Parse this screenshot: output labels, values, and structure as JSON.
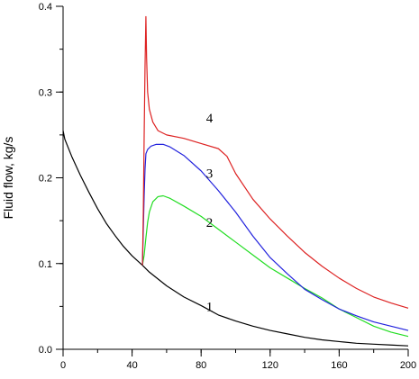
{
  "chart_data": {
    "type": "line",
    "title": "",
    "xlabel": "",
    "ylabel": "Fluid flow, kg/s",
    "xlim": [
      0,
      200
    ],
    "ylim": [
      0,
      0.4
    ],
    "x_ticks": [
      0,
      40,
      80,
      120,
      160,
      200
    ],
    "x_minor_step": 20,
    "y_ticks": [
      0.0,
      0.1,
      0.2,
      0.3,
      0.4
    ],
    "y_tick_labels": [
      "0.0",
      "0.1",
      "0.2",
      "0.3",
      "0.4"
    ],
    "y_minor_step": 0.05,
    "grid": false,
    "legend": "none",
    "series": [
      {
        "label": "1",
        "color": "#000000",
        "label_at": [
          50,
          0.05
        ],
        "points": [
          [
            0,
            0.255
          ],
          [
            1,
            0.245
          ],
          [
            5,
            0.225
          ],
          [
            10,
            0.203
          ],
          [
            15,
            0.183
          ],
          [
            20,
            0.164
          ],
          [
            25,
            0.147
          ],
          [
            30,
            0.133
          ],
          [
            35,
            0.12
          ],
          [
            40,
            0.109
          ],
          [
            46,
            0.098
          ],
          [
            50,
            0.09
          ],
          [
            60,
            0.074
          ],
          [
            70,
            0.061
          ],
          [
            80,
            0.051
          ],
          [
            90,
            0.04
          ],
          [
            100,
            0.033
          ],
          [
            110,
            0.027
          ],
          [
            120,
            0.022
          ],
          [
            130,
            0.018
          ],
          [
            140,
            0.014
          ],
          [
            150,
            0.011
          ],
          [
            160,
            0.009
          ],
          [
            170,
            0.007
          ],
          [
            180,
            0.006
          ],
          [
            190,
            0.005
          ],
          [
            200,
            0.004
          ]
        ]
      },
      {
        "label": "2",
        "color": "#22dd22",
        "label_at": [
          50,
          0.148
        ],
        "points": [
          [
            46,
            0.098
          ],
          [
            47,
            0.11
          ],
          [
            48,
            0.13
          ],
          [
            49,
            0.148
          ],
          [
            50,
            0.16
          ],
          [
            52,
            0.172
          ],
          [
            55,
            0.178
          ],
          [
            58,
            0.179
          ],
          [
            62,
            0.176
          ],
          [
            70,
            0.167
          ],
          [
            80,
            0.155
          ],
          [
            90,
            0.14
          ],
          [
            100,
            0.125
          ],
          [
            110,
            0.11
          ],
          [
            120,
            0.095
          ],
          [
            130,
            0.083
          ],
          [
            140,
            0.071
          ],
          [
            150,
            0.06
          ],
          [
            160,
            0.047
          ],
          [
            170,
            0.037
          ],
          [
            180,
            0.027
          ],
          [
            190,
            0.02
          ],
          [
            200,
            0.015
          ]
        ]
      },
      {
        "label": "3",
        "color": "#2222dd",
        "label_at": [
          50,
          0.205
        ],
        "points": [
          [
            46,
            0.098
          ],
          [
            46.5,
            0.14
          ],
          [
            47,
            0.18
          ],
          [
            47.5,
            0.21
          ],
          [
            48,
            0.228
          ],
          [
            49,
            0.233
          ],
          [
            51,
            0.237
          ],
          [
            54,
            0.239
          ],
          [
            58,
            0.239
          ],
          [
            62,
            0.236
          ],
          [
            70,
            0.226
          ],
          [
            80,
            0.208
          ],
          [
            90,
            0.185
          ],
          [
            100,
            0.16
          ],
          [
            110,
            0.132
          ],
          [
            120,
            0.107
          ],
          [
            130,
            0.088
          ],
          [
            140,
            0.07
          ],
          [
            150,
            0.058
          ],
          [
            160,
            0.047
          ],
          [
            170,
            0.039
          ],
          [
            180,
            0.032
          ],
          [
            190,
            0.027
          ],
          [
            200,
            0.022
          ]
        ]
      },
      {
        "label": "4",
        "color": "#dd2222",
        "label_at": [
          50,
          0.27
        ],
        "points": [
          [
            46,
            0.098
          ],
          [
            46.5,
            0.16
          ],
          [
            47,
            0.25
          ],
          [
            47.5,
            0.33
          ],
          [
            48,
            0.388
          ],
          [
            48.4,
            0.34
          ],
          [
            49,
            0.3
          ],
          [
            50,
            0.28
          ],
          [
            52,
            0.265
          ],
          [
            55,
            0.255
          ],
          [
            60,
            0.25
          ],
          [
            70,
            0.246
          ],
          [
            80,
            0.24
          ],
          [
            90,
            0.234
          ],
          [
            95,
            0.225
          ],
          [
            100,
            0.205
          ],
          [
            110,
            0.175
          ],
          [
            120,
            0.152
          ],
          [
            130,
            0.132
          ],
          [
            140,
            0.113
          ],
          [
            150,
            0.097
          ],
          [
            160,
            0.083
          ],
          [
            170,
            0.071
          ],
          [
            180,
            0.061
          ],
          [
            190,
            0.054
          ],
          [
            200,
            0.048
          ]
        ]
      }
    ]
  }
}
